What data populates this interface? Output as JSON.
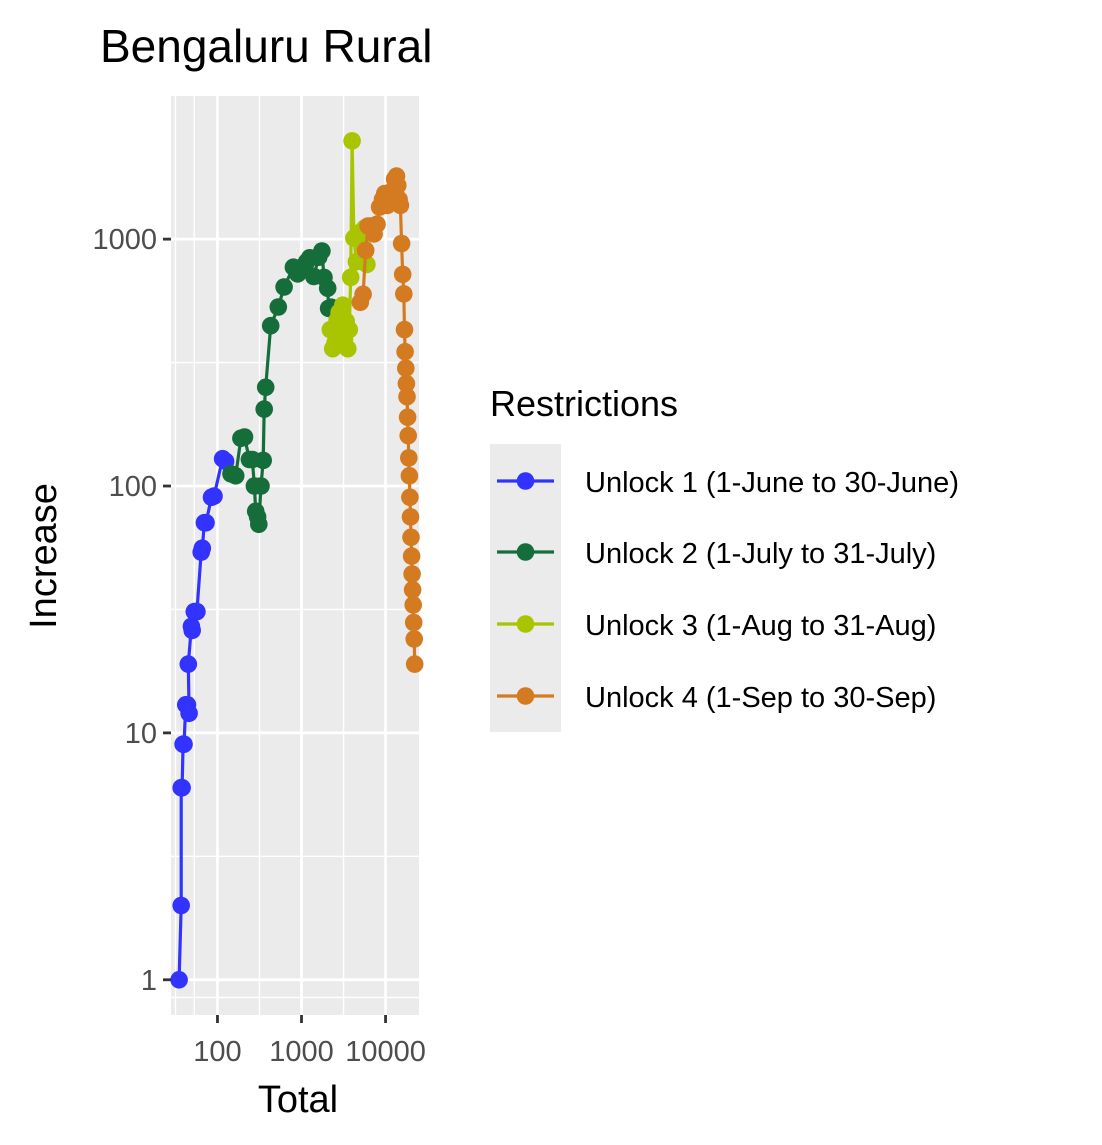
{
  "chart_data": {
    "type": "line",
    "title": "Bengaluru Rural",
    "xlabel": "Total",
    "ylabel": "Increase",
    "x_scale": "log10",
    "y_scale": "log10",
    "xlim": [
      28,
      25000
    ],
    "ylim": [
      0.72,
      3800
    ],
    "x_ticks": [
      {
        "value": 100,
        "label": "100"
      },
      {
        "value": 1000,
        "label": "1000"
      },
      {
        "value": 10000,
        "label": "10000"
      }
    ],
    "y_ticks": [
      {
        "value": 1,
        "label": "1"
      },
      {
        "value": 10,
        "label": "10"
      },
      {
        "value": 100,
        "label": "100"
      },
      {
        "value": 1000,
        "label": "1000"
      }
    ],
    "grid": true,
    "legend": {
      "title": "Restrictions",
      "position": "right"
    },
    "series": [
      {
        "name": "Unlock 1 (1-June to 30-June)",
        "color": "#3333ff",
        "points": [
          [
            35,
            1
          ],
          [
            37,
            2
          ],
          [
            37,
            6
          ],
          [
            38,
            6
          ],
          [
            39,
            9
          ],
          [
            40,
            9
          ],
          [
            42,
            13
          ],
          [
            44,
            13
          ],
          [
            46,
            12
          ],
          [
            45,
            19
          ],
          [
            49,
            27
          ],
          [
            50,
            26
          ],
          [
            53,
            31
          ],
          [
            57,
            31
          ],
          [
            64,
            54
          ],
          [
            66,
            56
          ],
          [
            70,
            71
          ],
          [
            73,
            71
          ],
          [
            85,
            90
          ],
          [
            91,
            91
          ],
          [
            115,
            129
          ],
          [
            125,
            126
          ]
        ]
      },
      {
        "name": "Unlock 2 (1-July to 31-July)",
        "color": "#156d3a",
        "points": [
          [
            145,
            112
          ],
          [
            165,
            110
          ],
          [
            190,
            156
          ],
          [
            210,
            158
          ],
          [
            240,
            128
          ],
          [
            260,
            128
          ],
          [
            275,
            100
          ],
          [
            285,
            79
          ],
          [
            300,
            75
          ],
          [
            310,
            70
          ],
          [
            330,
            100
          ],
          [
            350,
            127
          ],
          [
            360,
            205
          ],
          [
            375,
            251
          ],
          [
            430,
            446
          ],
          [
            530,
            531
          ],
          [
            620,
            640
          ],
          [
            800,
            770
          ],
          [
            900,
            723
          ],
          [
            1000,
            768
          ],
          [
            1150,
            809
          ],
          [
            1250,
            840
          ],
          [
            1400,
            706
          ],
          [
            1600,
            845
          ],
          [
            1750,
            895
          ],
          [
            1850,
            700
          ],
          [
            2050,
            633
          ],
          [
            2100,
            524
          ],
          [
            2250,
            530
          ]
        ]
      },
      {
        "name": "Unlock 3 (1-Aug to 31-Aug)",
        "color": "#a9c400",
        "points": [
          [
            2200,
            430
          ],
          [
            2350,
            360
          ],
          [
            2500,
            380
          ],
          [
            2650,
            470
          ],
          [
            2800,
            505
          ],
          [
            2950,
            420
          ],
          [
            3100,
            540
          ],
          [
            3250,
            390
          ],
          [
            3400,
            465
          ],
          [
            3550,
            360
          ],
          [
            3700,
            430
          ],
          [
            3850,
            700
          ],
          [
            4000,
            2500
          ],
          [
            4200,
            1010
          ],
          [
            4500,
            810
          ],
          [
            4800,
            1000
          ],
          [
            5100,
            1070
          ],
          [
            5400,
            1010
          ],
          [
            5700,
            1110
          ],
          [
            6000,
            790
          ]
        ]
      },
      {
        "name": "Unlock 4 (1-Sep to 30-Sep)",
        "color": "#d47a21",
        "points": [
          [
            5000,
            555
          ],
          [
            5400,
            598
          ],
          [
            5800,
            900
          ],
          [
            6200,
            1130
          ],
          [
            6700,
            1130
          ],
          [
            7300,
            1050
          ],
          [
            7900,
            1150
          ],
          [
            8500,
            1350
          ],
          [
            9200,
            1450
          ],
          [
            9800,
            1530
          ],
          [
            10500,
            1370
          ],
          [
            11200,
            1400
          ],
          [
            12000,
            1570
          ],
          [
            12800,
            1750
          ],
          [
            13500,
            1800
          ],
          [
            14000,
            1650
          ],
          [
            14500,
            1450
          ],
          [
            15000,
            1370
          ],
          [
            15500,
            960
          ],
          [
            16000,
            720
          ],
          [
            16500,
            600
          ],
          [
            16800,
            430
          ],
          [
            17100,
            350
          ],
          [
            17400,
            300
          ],
          [
            17700,
            260
          ],
          [
            18000,
            230
          ],
          [
            18300,
            190
          ],
          [
            18600,
            160
          ],
          [
            18900,
            130
          ],
          [
            19200,
            110
          ],
          [
            19500,
            90
          ],
          [
            19800,
            75
          ],
          [
            20100,
            62
          ],
          [
            20400,
            52
          ],
          [
            20700,
            44
          ],
          [
            21000,
            38
          ],
          [
            21300,
            33
          ],
          [
            21600,
            28
          ],
          [
            21900,
            24
          ],
          [
            22200,
            19
          ]
        ]
      }
    ]
  }
}
